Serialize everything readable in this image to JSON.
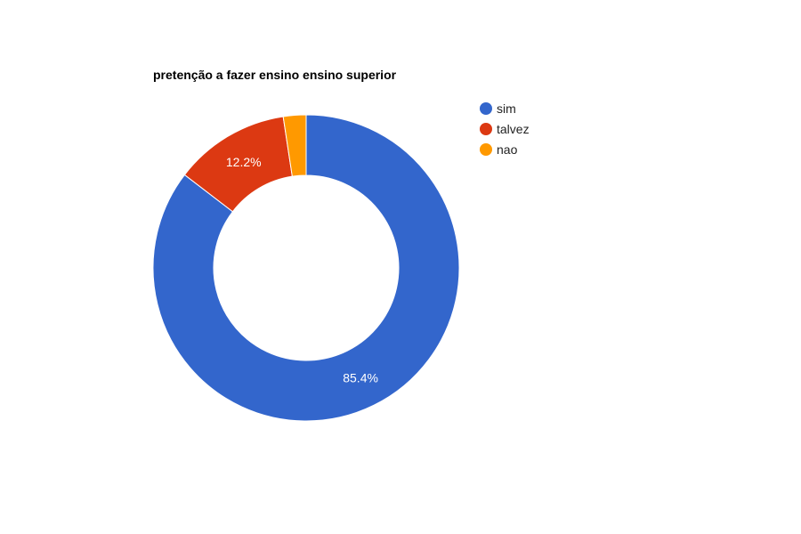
{
  "chart_data": {
    "type": "pie",
    "donut": true,
    "title": "pretenção a fazer ensino ensino superior",
    "legend_position": "right",
    "slices": [
      {
        "name": "sim",
        "value": 85.4,
        "label": "85.4%",
        "color": "#3366cc"
      },
      {
        "name": "talvez",
        "value": 12.2,
        "label": "12.2%",
        "color": "#dc3912"
      },
      {
        "name": "nao",
        "value": 2.4,
        "label": "",
        "color": "#ff9900"
      }
    ]
  }
}
